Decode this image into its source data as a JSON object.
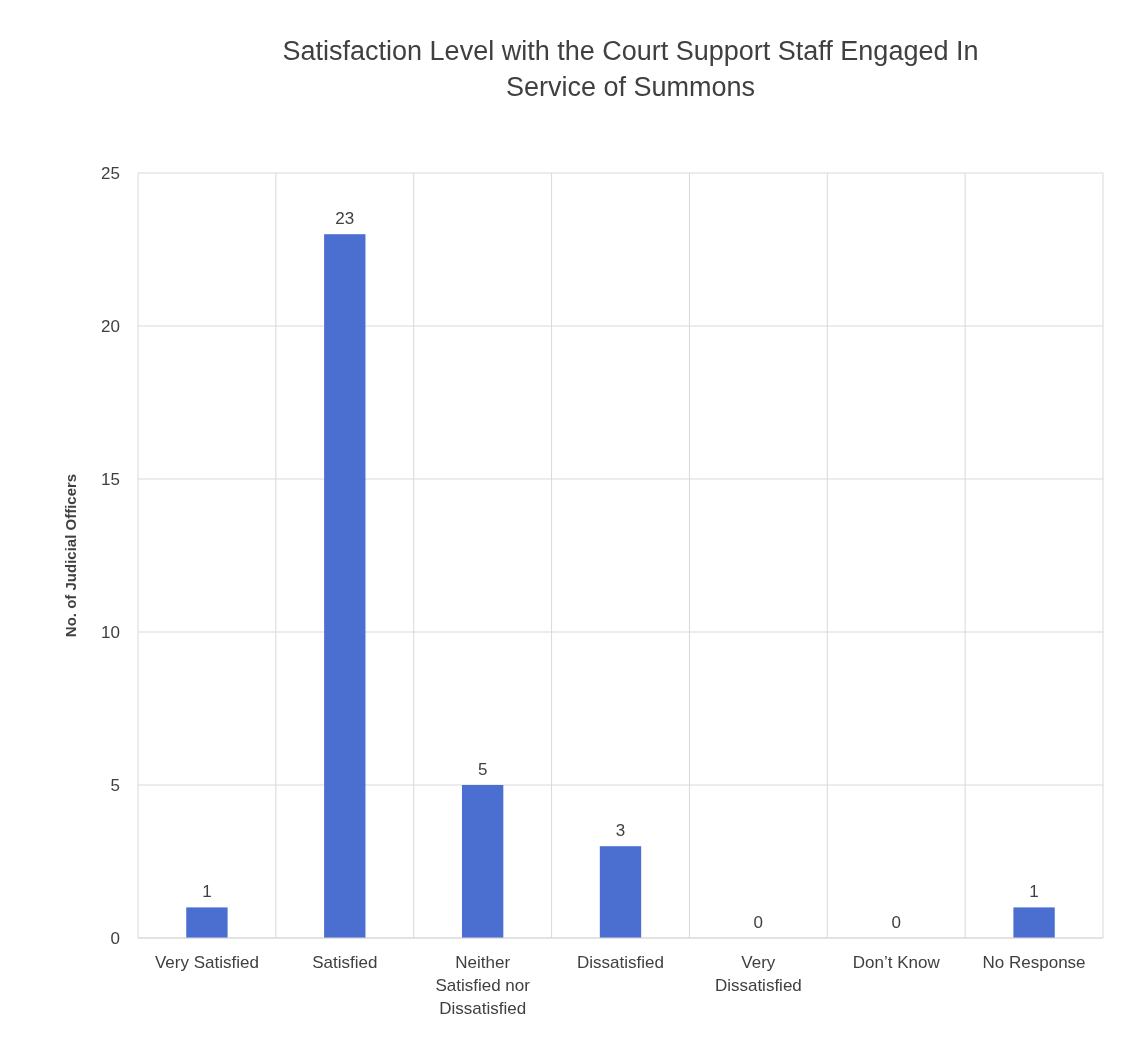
{
  "chart_data": {
    "type": "bar",
    "title": "Satisfaction Level with the Court Support Staff Engaged In Service of Summons",
    "ylabel": "No. of Judicial Officers",
    "categories": [
      "Very Satisfied",
      "Satisfied",
      "Neither Satisfied nor Dissatisfied",
      "Dissatisfied",
      "Very Dissatisfied",
      "Don’t Know",
      "No Response"
    ],
    "values": [
      1,
      23,
      5,
      3,
      0,
      0,
      1
    ],
    "color": "#4a6fd0",
    "ylim": [
      0,
      25
    ],
    "yticks": [
      0,
      5,
      10,
      15,
      20,
      25
    ],
    "grid": true,
    "data_labels": true
  }
}
